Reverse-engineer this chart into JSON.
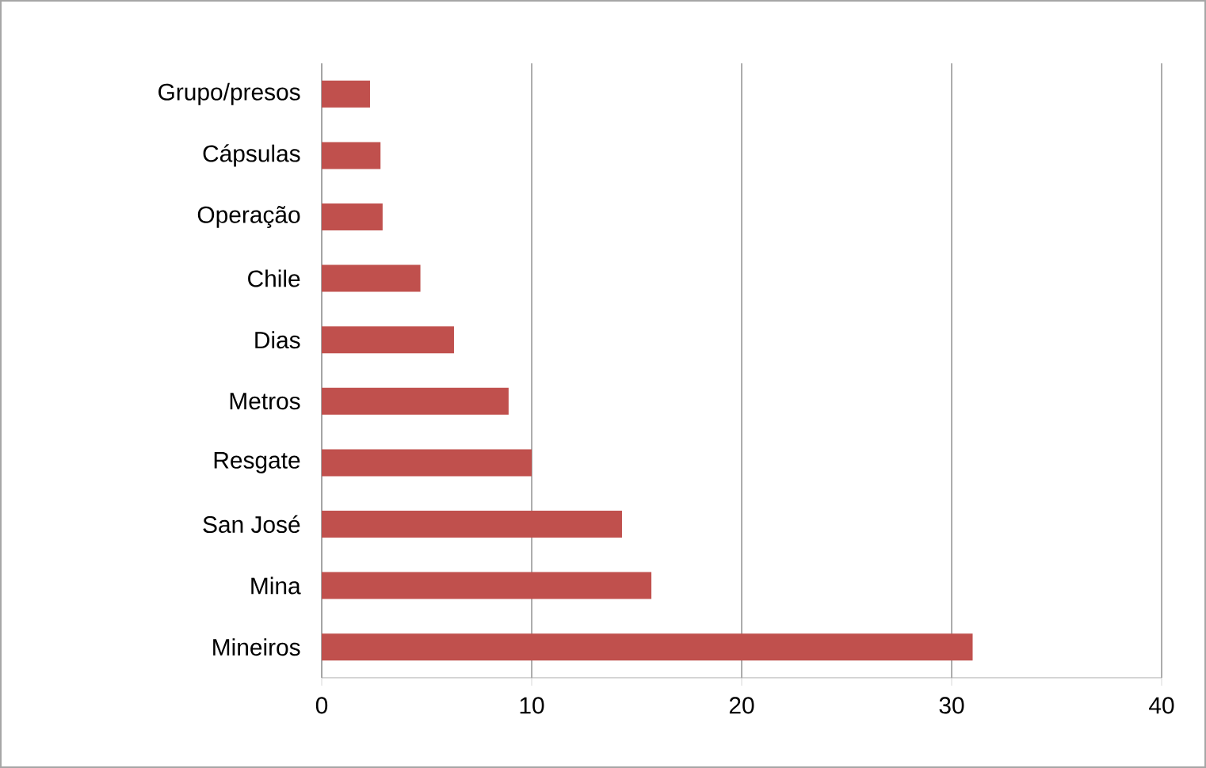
{
  "chart_data": {
    "type": "bar",
    "orientation": "horizontal",
    "categories": [
      "Grupo/presos",
      "Cápsulas",
      "Operação",
      "Chile",
      "Dias",
      "Metros",
      "Resgate",
      "San José",
      "Mina",
      "Mineiros"
    ],
    "values": [
      2.3,
      2.8,
      2.9,
      4.7,
      6.3,
      8.9,
      10,
      14.3,
      15.7,
      31
    ],
    "color": "#c0504d",
    "xlim": [
      0,
      40
    ],
    "xticks": [
      0,
      10,
      20,
      30,
      40
    ],
    "grid": "x"
  }
}
